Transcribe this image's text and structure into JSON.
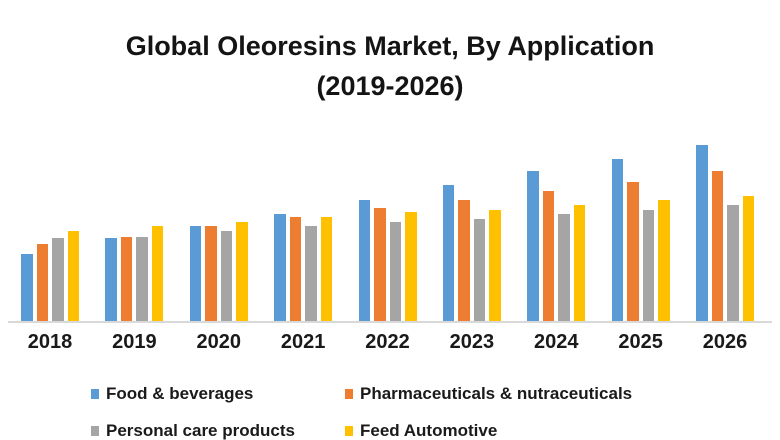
{
  "title": {
    "line1": "Global Oleoresins Market, By Application",
    "line2": "(2019-2026)"
  },
  "chart_data": {
    "type": "bar",
    "title": "Global Oleoresins Market, By Application (2019-2026)",
    "categories": [
      "2018",
      "2019",
      "2020",
      "2021",
      "2022",
      "2023",
      "2024",
      "2025",
      "2026"
    ],
    "series": [
      {
        "name": "Food & beverages",
        "color": "#5B9BD5",
        "values": [
          38,
          47,
          54,
          61,
          69,
          77,
          85,
          92,
          100
        ]
      },
      {
        "name": "Pharmaceuticals & nutraceuticals",
        "color": "#ED7D31",
        "values": [
          44,
          48,
          54,
          59,
          64,
          69,
          74,
          79,
          85
        ]
      },
      {
        "name": "Personal care products",
        "color": "#A5A5A5",
        "values": [
          47,
          48,
          51,
          54,
          56,
          58,
          61,
          63,
          66
        ]
      },
      {
        "name": "Feed Automotive",
        "color": "#FFC000",
        "values": [
          51,
          54,
          56,
          59,
          62,
          63,
          66,
          69,
          71
        ]
      }
    ],
    "xlabel": "",
    "ylabel": "",
    "ylim": [
      0,
      105
    ],
    "y_axis_visible": false,
    "gridlines": false,
    "legend_position": "bottom",
    "value_scale_note": "no y-axis shown in source; values are relative, tallest bar normalized to 100",
    "axis_line_color": "#D9D9D9"
  }
}
